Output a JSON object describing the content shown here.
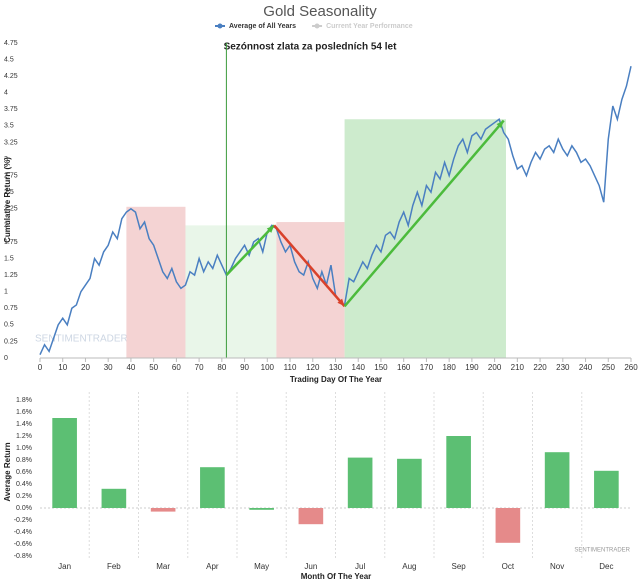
{
  "chart_data": [
    {
      "type": "line",
      "title": "Gold Seasonality",
      "annotation": "Sezónnost zlata za posledních 54 let",
      "xlabel": "Trading Day Of The Year",
      "ylabel": "Cumulative Return (%)",
      "watermark": "SENTIMENTRADER",
      "x": [
        0,
        2,
        4,
        6,
        8,
        10,
        12,
        14,
        16,
        18,
        20,
        22,
        24,
        26,
        28,
        30,
        32,
        34,
        36,
        38,
        40,
        42,
        44,
        46,
        48,
        50,
        52,
        54,
        56,
        58,
        60,
        62,
        64,
        66,
        68,
        70,
        72,
        74,
        76,
        78,
        80,
        82,
        84,
        86,
        88,
        90,
        92,
        94,
        96,
        98,
        100,
        102,
        104,
        106,
        108,
        110,
        112,
        114,
        116,
        118,
        120,
        122,
        124,
        126,
        128,
        130,
        132,
        134,
        136,
        138,
        140,
        142,
        144,
        146,
        148,
        150,
        152,
        154,
        156,
        158,
        160,
        162,
        164,
        166,
        168,
        170,
        172,
        174,
        176,
        178,
        180,
        182,
        184,
        186,
        188,
        190,
        192,
        194,
        196,
        198,
        200,
        202,
        204,
        206,
        208,
        210,
        212,
        214,
        216,
        218,
        220,
        222,
        224,
        226,
        228,
        230,
        232,
        234,
        236,
        238,
        240,
        242,
        244,
        246,
        248,
        250,
        252,
        254,
        256,
        258,
        260
      ],
      "series": [
        {
          "name": "Average of All Years",
          "color": "#4a7fc1",
          "values": [
            0.05,
            0.2,
            0.1,
            0.3,
            0.5,
            0.6,
            0.5,
            0.75,
            0.8,
            1.0,
            1.1,
            1.2,
            1.5,
            1.4,
            1.6,
            1.7,
            1.9,
            1.8,
            2.1,
            2.2,
            2.25,
            2.2,
            1.95,
            2.05,
            1.8,
            1.7,
            1.5,
            1.3,
            1.2,
            1.35,
            1.15,
            1.05,
            1.1,
            1.3,
            1.25,
            1.5,
            1.3,
            1.45,
            1.35,
            1.55,
            1.4,
            1.25,
            1.35,
            1.5,
            1.6,
            1.7,
            1.55,
            1.75,
            1.8,
            1.6,
            1.9,
            2.0,
            1.95,
            1.75,
            1.6,
            1.7,
            1.45,
            1.3,
            1.25,
            1.45,
            1.2,
            1.05,
            1.3,
            1.1,
            1.4,
            0.95,
            0.85,
            0.8,
            1.2,
            1.15,
            1.3,
            1.45,
            1.35,
            1.55,
            1.7,
            1.6,
            1.85,
            1.9,
            1.8,
            2.05,
            2.2,
            2.0,
            2.3,
            2.5,
            2.3,
            2.6,
            2.5,
            2.8,
            2.7,
            2.95,
            2.75,
            3.0,
            3.2,
            3.3,
            3.1,
            3.35,
            3.4,
            3.3,
            3.45,
            3.5,
            3.55,
            3.6,
            3.4,
            3.3,
            3.05,
            2.85,
            2.9,
            2.75,
            2.95,
            3.1,
            3.0,
            3.15,
            3.2,
            3.1,
            3.3,
            3.15,
            3.05,
            3.2,
            3.1,
            2.95,
            3.0,
            2.9,
            2.75,
            2.6,
            2.35,
            3.3,
            3.8,
            3.6,
            3.9,
            4.1,
            4.4
          ]
        }
      ],
      "legend_extra": {
        "name": "Current Year Performance",
        "color": "#cccccc"
      },
      "regions": [
        {
          "x": [
            38,
            64
          ],
          "y": [
            0,
            2.28
          ],
          "color": "#f4d3d3"
        },
        {
          "x": [
            64,
            104
          ],
          "y": [
            0,
            2.0
          ],
          "color": "#e9f6e9"
        },
        {
          "x": [
            104,
            134
          ],
          "y": [
            0,
            2.05
          ],
          "color": "#f4d3d3"
        },
        {
          "x": [
            134,
            205
          ],
          "y": [
            0,
            3.6
          ],
          "color": "#cdebcd"
        }
      ],
      "vline": {
        "x": 82,
        "color": "#3a9a3a"
      },
      "arrows": [
        {
          "x": [
            82,
            103
          ],
          "y": [
            1.25,
            2.0
          ],
          "color": "#4cbb3c"
        },
        {
          "x": [
            103,
            134
          ],
          "y": [
            2.0,
            0.78
          ],
          "color": "#d9412b"
        },
        {
          "x": [
            134,
            204
          ],
          "y": [
            0.78,
            3.58
          ],
          "color": "#4cbb3c"
        }
      ],
      "xlim": [
        0,
        260
      ],
      "xticks": [
        0,
        10,
        20,
        30,
        40,
        50,
        60,
        70,
        80,
        90,
        100,
        110,
        120,
        130,
        140,
        150,
        160,
        170,
        180,
        190,
        200,
        210,
        220,
        230,
        240,
        250,
        260
      ],
      "ylim": [
        0,
        4.75
      ],
      "yticks": [
        0,
        0.25,
        0.5,
        0.75,
        1,
        1.25,
        1.5,
        1.75,
        2,
        2.25,
        2.5,
        2.75,
        3,
        3.25,
        3.5,
        3.75,
        4,
        4.25,
        4.5,
        4.75
      ]
    },
    {
      "type": "bar",
      "xlabel": "Month Of The Year",
      "ylabel": "Average Return",
      "watermark": "SENTIMENTRADER",
      "categories": [
        "Jan",
        "Feb",
        "Mar",
        "Apr",
        "May",
        "Jun",
        "Jul",
        "Aug",
        "Sep",
        "Oct",
        "Nov",
        "Dec"
      ],
      "values": [
        1.5,
        0.32,
        -0.06,
        0.68,
        -0.03,
        -0.27,
        0.84,
        0.82,
        1.2,
        -0.58,
        0.93,
        0.62
      ],
      "colors": [
        "#5cbf73",
        "#5cbf73",
        "#e58a8a",
        "#5cbf73",
        "#5cbf73",
        "#e58a8a",
        "#5cbf73",
        "#5cbf73",
        "#5cbf73",
        "#e58a8a",
        "#5cbf73",
        "#5cbf73"
      ],
      "ylim": [
        -0.8,
        1.8
      ],
      "yticks": [
        {
          "value": -0.8,
          "label": "-0.8%"
        },
        {
          "value": -0.6,
          "label": "-0.6%"
        },
        {
          "value": -0.4,
          "label": "-0.4%"
        },
        {
          "value": -0.2,
          "label": "-0.2%"
        },
        {
          "value": 0,
          "label": "0.0%"
        },
        {
          "value": 0.2,
          "label": "0.2%"
        },
        {
          "value": 0.4,
          "label": "0.4%"
        },
        {
          "value": 0.6,
          "label": "0.6%"
        },
        {
          "value": 0.8,
          "label": "0.8%"
        },
        {
          "value": 1.0,
          "label": "1.0%"
        },
        {
          "value": 1.2,
          "label": "1.2%"
        },
        {
          "value": 1.4,
          "label": "1.4%"
        },
        {
          "value": 1.6,
          "label": "1.6%"
        },
        {
          "value": 1.8,
          "label": "1.8%"
        }
      ]
    }
  ]
}
